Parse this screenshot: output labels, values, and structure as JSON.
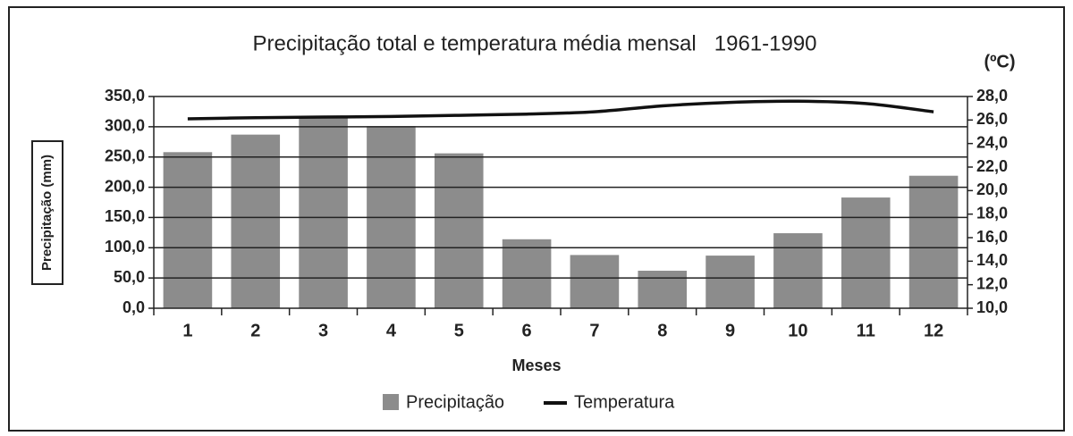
{
  "chart_data": {
    "type": "bar_line",
    "title": "Precipitação total e temperatura média mensal   1961-1990",
    "x_label": "Meses",
    "y_label": "Precipitação (mm)",
    "y2_label": "(ºC)",
    "categories": [
      "1",
      "2",
      "3",
      "4",
      "5",
      "6",
      "7",
      "8",
      "9",
      "10",
      "11",
      "12"
    ],
    "series": [
      {
        "name": "Precipitação",
        "type": "bar",
        "color": "#8c8c8c",
        "values": [
          258,
          287,
          318,
          301,
          256,
          114,
          88,
          62,
          87,
          124,
          183,
          219
        ]
      },
      {
        "name": "Temperatura",
        "type": "line",
        "axis": "y2",
        "color": "#111111",
        "values": [
          26.1,
          26.2,
          26.25,
          26.3,
          26.4,
          26.5,
          26.7,
          27.2,
          27.5,
          27.6,
          27.4,
          26.7
        ]
      }
    ],
    "ylim": [
      0,
      350
    ],
    "yticks": [
      {
        "value": 0,
        "label": "0,0"
      },
      {
        "value": 50,
        "label": "50,0"
      },
      {
        "value": 100,
        "label": "100,0"
      },
      {
        "value": 150,
        "label": "150,0"
      },
      {
        "value": 200,
        "label": "200,0"
      },
      {
        "value": 250,
        "label": "250,0"
      },
      {
        "value": 300,
        "label": "300,0"
      },
      {
        "value": 350,
        "label": "350,0"
      }
    ],
    "y2lim": [
      10,
      28
    ],
    "y2ticks": [
      {
        "value": 10,
        "label": "10,0"
      },
      {
        "value": 12,
        "label": "12,0"
      },
      {
        "value": 14,
        "label": "14,0"
      },
      {
        "value": 16,
        "label": "16,0"
      },
      {
        "value": 18,
        "label": "18,0"
      },
      {
        "value": 20,
        "label": "20,0"
      },
      {
        "value": 22,
        "label": "22,0"
      },
      {
        "value": 24,
        "label": "24,0"
      },
      {
        "value": 26,
        "label": "26,0"
      },
      {
        "value": 28,
        "label": "28,0"
      }
    ],
    "grid": true
  }
}
